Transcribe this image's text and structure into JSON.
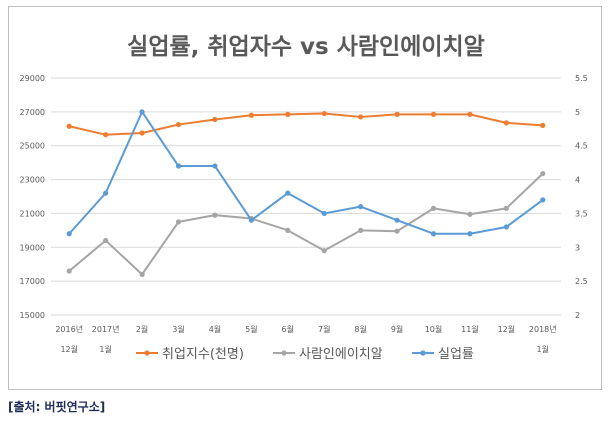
{
  "chart_data": {
    "type": "line",
    "title": "실업률, 취업자수 vs 사람인에이치알",
    "categories": [
      [
        "2016년",
        "12월"
      ],
      [
        "2017년",
        "1월"
      ],
      [
        "2월"
      ],
      [
        "3월"
      ],
      [
        "4월"
      ],
      [
        "5월"
      ],
      [
        "6월"
      ],
      [
        "7월"
      ],
      [
        "8월"
      ],
      [
        "9월"
      ],
      [
        "10월"
      ],
      [
        "11월"
      ],
      [
        "12월"
      ],
      [
        "2018년",
        "1월"
      ]
    ],
    "left_axis": {
      "ticks": [
        "15000",
        "17000",
        "19000",
        "21000",
        "23000",
        "25000",
        "27000",
        "29000"
      ],
      "ylim": [
        15000,
        29000
      ]
    },
    "right_axis": {
      "ticks": [
        "2",
        "2.5",
        "3",
        "3.5",
        "4",
        "4.5",
        "5",
        "5.5"
      ],
      "ylim": [
        2,
        5.5
      ]
    },
    "grid": true,
    "legend_position": "bottom",
    "series": [
      {
        "name": "취업지수(천명)",
        "color": "#ed7d31",
        "axis": "left",
        "values": [
          26150,
          25650,
          25750,
          26250,
          26550,
          26800,
          26850,
          26900,
          26700,
          26850,
          26850,
          26850,
          26350,
          26200
        ]
      },
      {
        "name": "사람인에이치알",
        "color": "#a5a5a5",
        "axis": "left",
        "values": [
          17600,
          19400,
          17400,
          20500,
          20900,
          20700,
          20000,
          18800,
          20000,
          19950,
          21300,
          20950,
          21300,
          23350
        ]
      },
      {
        "name": "실업률",
        "color": "#5b9bd5",
        "axis": "right",
        "values": [
          3.2,
          3.8,
          5.0,
          4.2,
          4.2,
          3.4,
          3.8,
          3.5,
          3.6,
          3.4,
          3.2,
          3.2,
          3.3,
          3.7
        ]
      }
    ]
  },
  "source": "[출처: 버핏연구소]"
}
